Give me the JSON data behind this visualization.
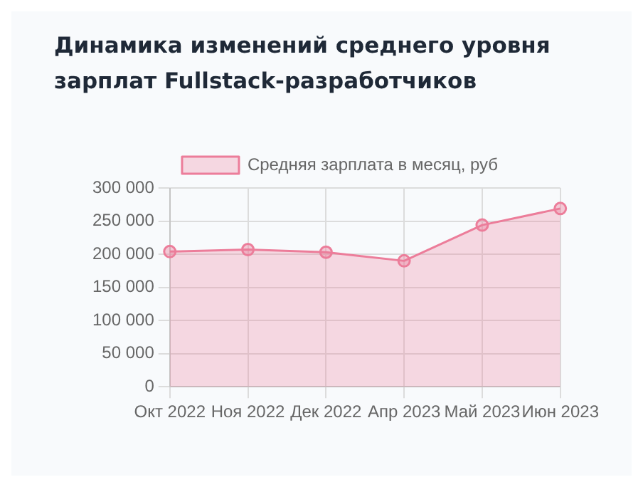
{
  "chart_data": {
    "type": "area",
    "title": "Динамика изменений среднего уровня зарплат Fullstack-разработчиков",
    "categories": [
      "Окт 2022",
      "Ноя 2022",
      "Дек 2022",
      "Апр 2023",
      "Май 2023",
      "Июн 2023"
    ],
    "series": [
      {
        "name": "Средняя зарплата в месяц, руб",
        "color": "#ec7d9a",
        "values": [
          204000,
          207000,
          203000,
          190000,
          244000,
          269000
        ]
      }
    ],
    "ylim": [
      0,
      300000
    ],
    "yticks": [
      {
        "value": 0,
        "label": "0"
      },
      {
        "value": 50000,
        "label": "50 000"
      },
      {
        "value": 100000,
        "label": "100 000"
      },
      {
        "value": 150000,
        "label": "150 000"
      },
      {
        "value": 200000,
        "label": "200 000"
      },
      {
        "value": 250000,
        "label": "250 000"
      },
      {
        "value": 300000,
        "label": "300 000"
      }
    ],
    "grid": true,
    "legend": "top",
    "marker": "circle"
  }
}
